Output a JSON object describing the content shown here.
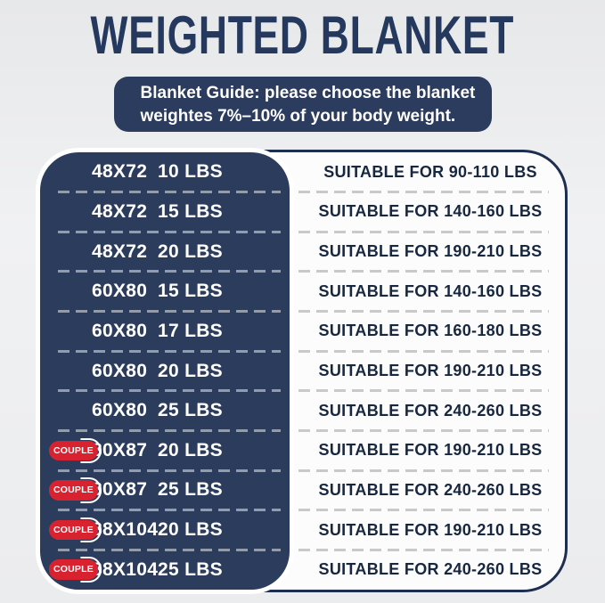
{
  "title": "WEIGHTED BLANKET",
  "banner": {
    "line1": "Blanket Guide: please choose the blanket",
    "line2": "weightes 7%–10% of your body weight."
  },
  "couple_badge_label": "COUPLE",
  "colors": {
    "navy": "#2b3c5d",
    "title_navy": "#25395e",
    "badge_red": "#d92230",
    "page_bg": "#edeef0",
    "table_bg": "#fcfcfd",
    "suitable_text": "#17273f",
    "dash_on_navy": "#929cab",
    "dash_on_white": "#c8c9cb"
  },
  "chart_data": {
    "type": "table",
    "title": "WEIGHTED BLANKET",
    "subtitle": "Blanket Guide: please choose the blanket weightes 7%–10% of your body weight.",
    "columns": [
      "couple",
      "size",
      "weight",
      "suitable"
    ],
    "rows": [
      {
        "couple": false,
        "size": "48X72",
        "weight": "10 LBS",
        "suitable": "SUITABLE FOR 90-110 LBS"
      },
      {
        "couple": false,
        "size": "48X72",
        "weight": "15 LBS",
        "suitable": "SUITABLE FOR 140-160 LBS"
      },
      {
        "couple": false,
        "size": "48X72",
        "weight": "20 LBS",
        "suitable": "SUITABLE FOR 190-210 LBS"
      },
      {
        "couple": false,
        "size": "60X80",
        "weight": "15 LBS",
        "suitable": "SUITABLE FOR 140-160 LBS"
      },
      {
        "couple": false,
        "size": "60X80",
        "weight": "17 LBS",
        "suitable": "SUITABLE FOR 160-180 LBS"
      },
      {
        "couple": false,
        "size": "60X80",
        "weight": "20 LBS",
        "suitable": "SUITABLE FOR 190-210 LBS"
      },
      {
        "couple": false,
        "size": "60X80",
        "weight": "25 LBS",
        "suitable": "SUITABLE FOR 240-260 LBS"
      },
      {
        "couple": true,
        "size": "80X87",
        "weight": "20 LBS",
        "suitable": "SUITABLE FOR 190-210 LBS"
      },
      {
        "couple": true,
        "size": "80X87",
        "weight": "25 LBS",
        "suitable": "SUITABLE FOR 240-260 LBS"
      },
      {
        "couple": true,
        "size": "88X104",
        "weight": "20 LBS",
        "suitable": "SUITABLE FOR 190-210 LBS"
      },
      {
        "couple": true,
        "size": "88X104",
        "weight": "25 LBS",
        "suitable": "SUITABLE FOR 240-260 LBS"
      }
    ]
  }
}
